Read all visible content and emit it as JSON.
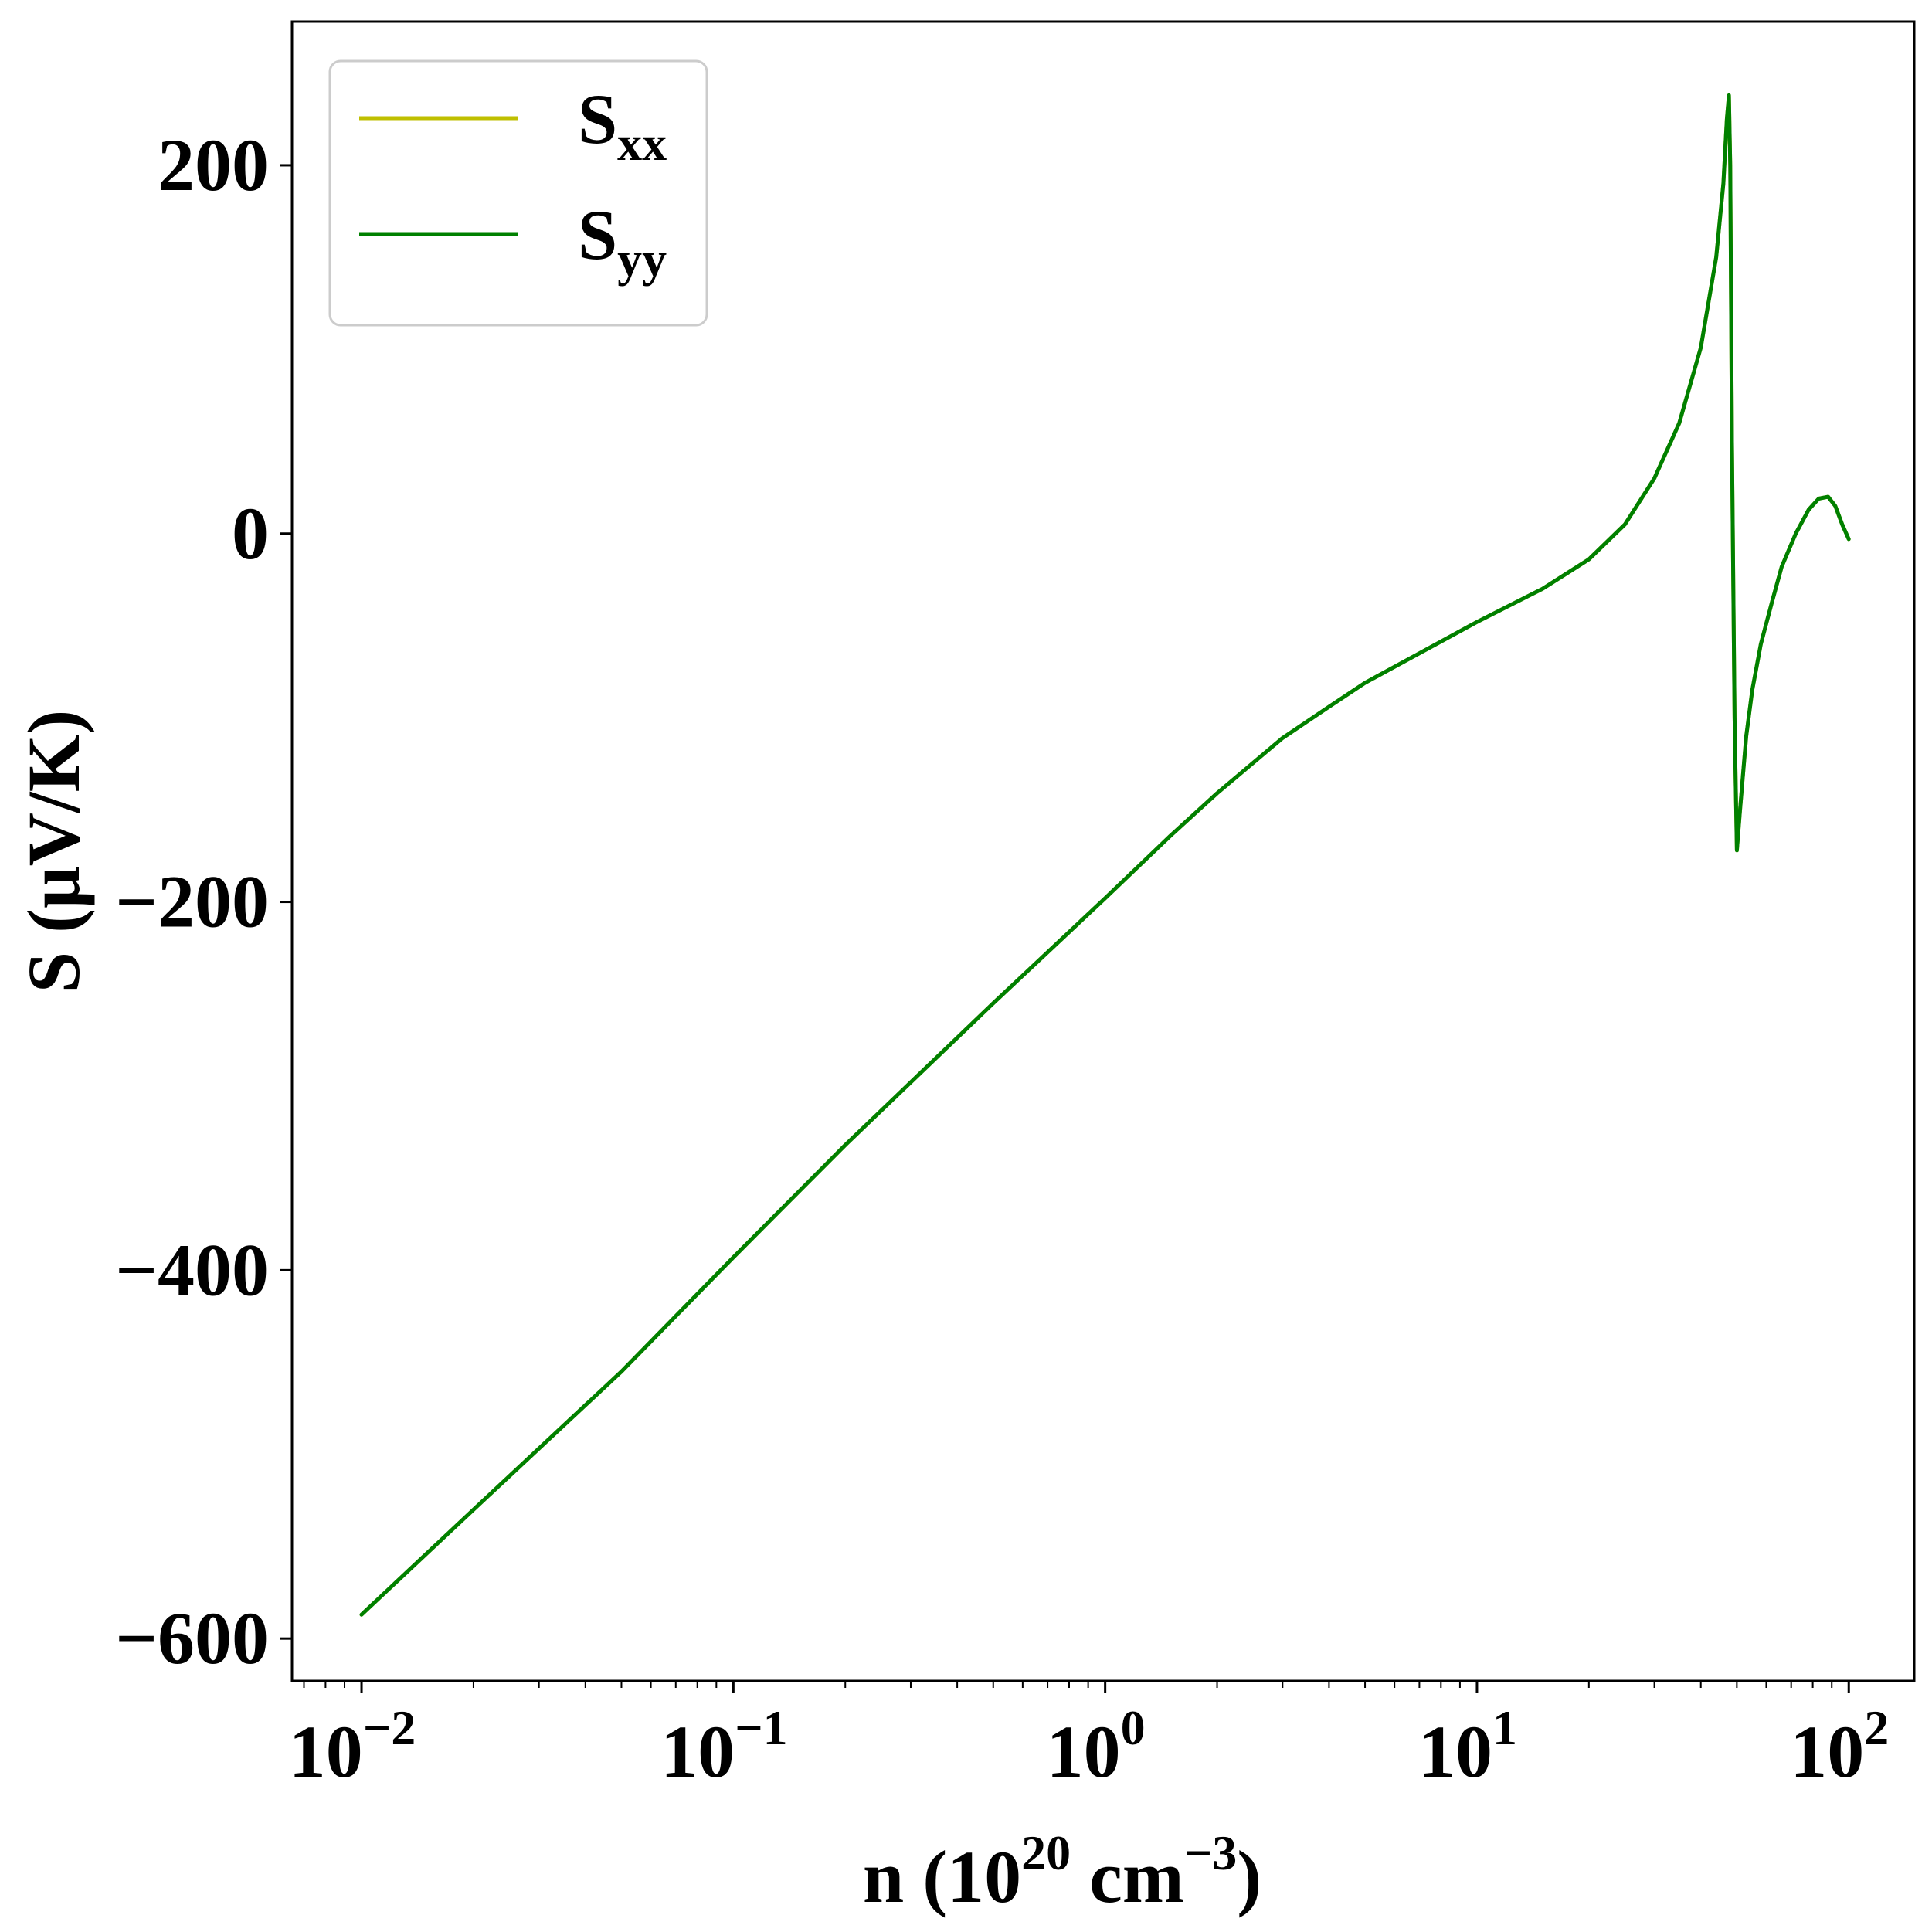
{
  "colors": {
    "series_xx": "#bfbf00",
    "series_yy": "#008000",
    "axes": "#000000",
    "legend_border": "#cccccc",
    "background": "#ffffff"
  },
  "chart_data": {
    "type": "line",
    "x_scale": "log",
    "xlim": [
      0.0065,
      150
    ],
    "ylim": [
      -623,
      278
    ],
    "grid": false,
    "legend_position": "top-left",
    "xlabel": {
      "prefix": "n (10",
      "sup1": "20",
      "middle": " cm",
      "sup2": "−3",
      "suffix": ")"
    },
    "ylabel": "S (μV/K)",
    "x_ticks": [
      {
        "value": 0.01,
        "base": "10",
        "exp": "−2"
      },
      {
        "value": 0.1,
        "base": "10",
        "exp": "−1"
      },
      {
        "value": 1,
        "base": "10",
        "exp": "0"
      },
      {
        "value": 10,
        "base": "10",
        "exp": "1"
      },
      {
        "value": 100,
        "base": "10",
        "exp": "2"
      }
    ],
    "y_ticks": [
      {
        "value": 200,
        "label": "200"
      },
      {
        "value": 0,
        "label": "0"
      },
      {
        "value": -200,
        "label": "−200"
      },
      {
        "value": -400,
        "label": "−400"
      },
      {
        "value": -600,
        "label": "−600"
      }
    ],
    "series": [
      {
        "name": "S",
        "sub": "xx",
        "color": "#bfbf00",
        "x": [
          0.01,
          0.02,
          0.05,
          0.1,
          0.2,
          0.5,
          1,
          1.5,
          2,
          3,
          4,
          5,
          7,
          10,
          15,
          20,
          25,
          30,
          35,
          40,
          44,
          46,
          47,
          47.6,
          48,
          48.5,
          49.3,
          50,
          51,
          53,
          55,
          58,
          62,
          66,
          72,
          78,
          83,
          88,
          92,
          96,
          100
        ],
        "values": [
          -587,
          -530,
          -455,
          -393,
          -332,
          -255,
          -198,
          -164,
          -141,
          -111,
          -94,
          -81,
          -65,
          -48,
          -30,
          -14,
          5,
          30,
          60,
          101,
          150,
          190,
          225,
          238,
          200,
          50,
          -100,
          -172,
          -150,
          -110,
          -85,
          -60,
          -38,
          -18,
          0,
          13,
          19,
          20,
          15,
          5,
          -3
        ]
      },
      {
        "name": "S",
        "sub": "yy",
        "color": "#008000",
        "x": [
          0.01,
          0.02,
          0.05,
          0.1,
          0.2,
          0.5,
          1,
          1.5,
          2,
          3,
          4,
          5,
          7,
          10,
          15,
          20,
          25,
          30,
          35,
          40,
          44,
          46,
          47,
          47.6,
          48,
          48.5,
          49.3,
          50,
          51,
          53,
          55,
          58,
          62,
          66,
          72,
          78,
          83,
          88,
          92,
          96,
          100
        ],
        "values": [
          -587,
          -530,
          -455,
          -393,
          -332,
          -255,
          -198,
          -164,
          -141,
          -111,
          -94,
          -81,
          -65,
          -48,
          -30,
          -14,
          5,
          30,
          60,
          101,
          150,
          190,
          225,
          238,
          200,
          50,
          -100,
          -172,
          -150,
          -110,
          -85,
          -60,
          -38,
          -18,
          0,
          13,
          19,
          20,
          15,
          5,
          -3
        ]
      }
    ]
  }
}
